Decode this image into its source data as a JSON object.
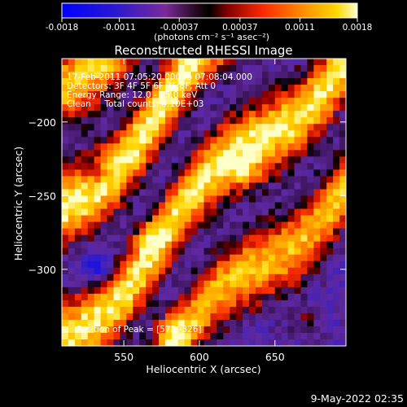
{
  "chart_data": {
    "type": "heatmap",
    "title": "Reconstructed RHESSI Image",
    "xlabel": "Heliocentric X (arcsec)",
    "ylabel": "Heliocentric Y (arcsec)",
    "xlim": [
      509,
      697
    ],
    "ylim": [
      -352,
      -157
    ],
    "x_ticks": [
      "550",
      "600",
      "650"
    ],
    "x_tick_values": [
      550,
      600,
      650
    ],
    "y_ticks": [
      "-200",
      "-250",
      "-300"
    ],
    "y_tick_values": [
      -200,
      -250,
      -300
    ],
    "colorbar": {
      "min": -0.0018,
      "max": 0.0018,
      "tick_labels": [
        "-0.0018",
        "-0.0011",
        "-0.00037",
        "0.00037",
        "0.0011",
        "0.0018"
      ],
      "tick_values": [
        -0.0018,
        -0.0011,
        -0.00037,
        0.00037,
        0.0011,
        0.0018
      ],
      "units": "(photons cm⁻² s⁻¹ asec⁻²)"
    },
    "annotations": [
      "17-Feb-2011 07:05:20.000 to 07:08:04.000",
      "Detectors: 3F 4F 5F 6F 7F 8F, Att 0",
      "Energy Range: 12.0 - 25.0 keV",
      "Clean     Total counts: 4.10E+03",
      "Position of Peak = [572,-326]"
    ],
    "peak": [
      572,
      -326
    ],
    "colors": {
      "background": "#000000",
      "text": "#ffffff",
      "colormap": [
        "#0000ff",
        "#3020c0",
        "#6a2aa8",
        "#000000",
        "#a00000",
        "#ff3000",
        "#ff8c00",
        "#ffd200",
        "#ffffc8"
      ]
    }
  },
  "footer": {
    "timestamp": "9-May-2022 02:35"
  }
}
